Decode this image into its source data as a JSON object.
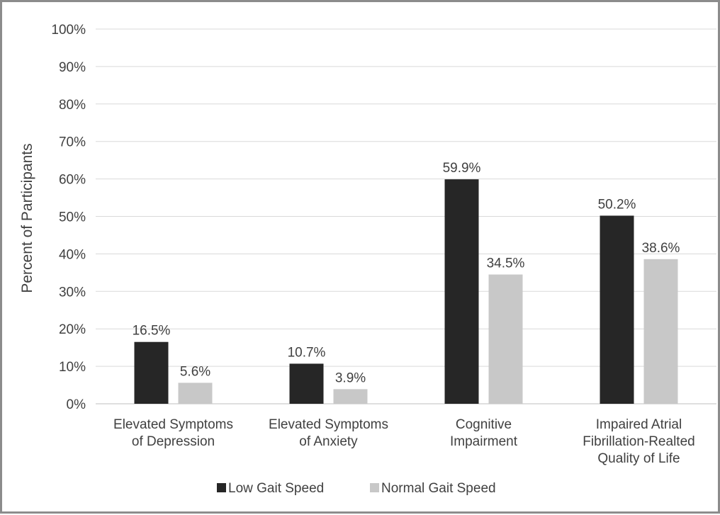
{
  "chart_data": {
    "type": "bar",
    "title": "",
    "xlabel": "",
    "ylabel": "Percent of Participants",
    "ylim": [
      0,
      100
    ],
    "yticks": [
      "0%",
      "10%",
      "20%",
      "30%",
      "40%",
      "50%",
      "60%",
      "70%",
      "80%",
      "90%",
      "100%"
    ],
    "categories": [
      [
        "Elevated Symptoms",
        "of Depression"
      ],
      [
        "Elevated Symptoms",
        "of Anxiety"
      ],
      [
        "Cognitive",
        "Impairment"
      ],
      [
        "Impaired Atrial",
        "Fibrillation-Realted",
        "Quality of Life"
      ]
    ],
    "series": [
      {
        "name": "Low Gait Speed",
        "color": "#262626",
        "values": [
          16.5,
          10.7,
          59.9,
          50.2
        ],
        "labels": [
          "16.5%",
          "10.7%",
          "59.9%",
          "50.2%"
        ]
      },
      {
        "name": "Normal Gait Speed",
        "color": "#c8c8c8",
        "values": [
          5.6,
          3.9,
          34.5,
          38.6
        ],
        "labels": [
          "5.6%",
          "3.9%",
          "34.5%",
          "38.6%"
        ]
      }
    ],
    "grid": true,
    "legend_position": "bottom"
  }
}
